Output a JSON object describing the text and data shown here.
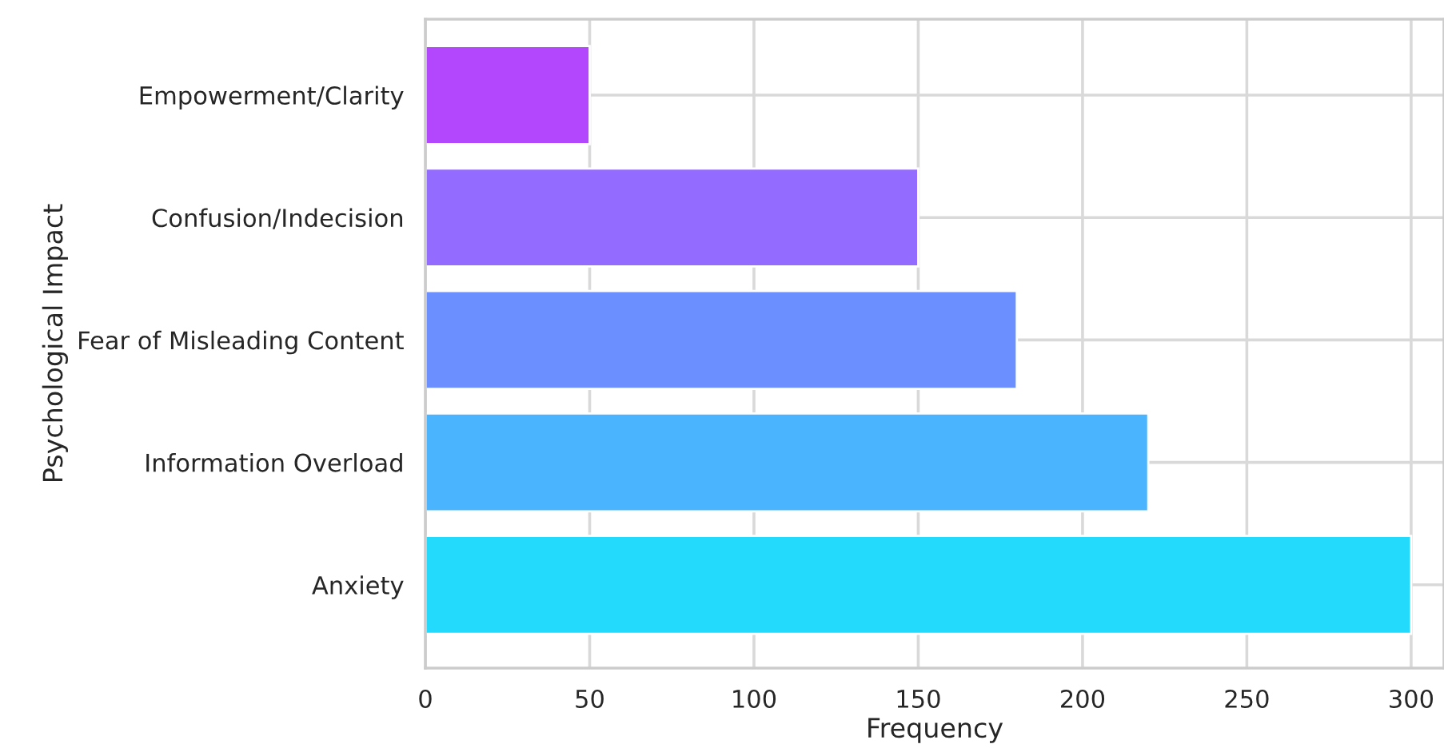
{
  "chart_data": {
    "type": "bar",
    "orientation": "horizontal",
    "xlabel": "Frequency",
    "ylabel": "Psychological Impact",
    "categories": [
      "Empowerment/Clarity",
      "Confusion/Indecision",
      "Fear of Misleading Content",
      "Information Overload",
      "Anxiety"
    ],
    "values": [
      50,
      150,
      180,
      220,
      300
    ],
    "colors": [
      "#b347fd",
      "#936bfe",
      "#6b8ffe",
      "#4bb4fe",
      "#23dafd"
    ],
    "xlim": [
      0,
      310
    ],
    "xticks": [
      0,
      50,
      100,
      150,
      200,
      250,
      300
    ],
    "grid": true
  }
}
